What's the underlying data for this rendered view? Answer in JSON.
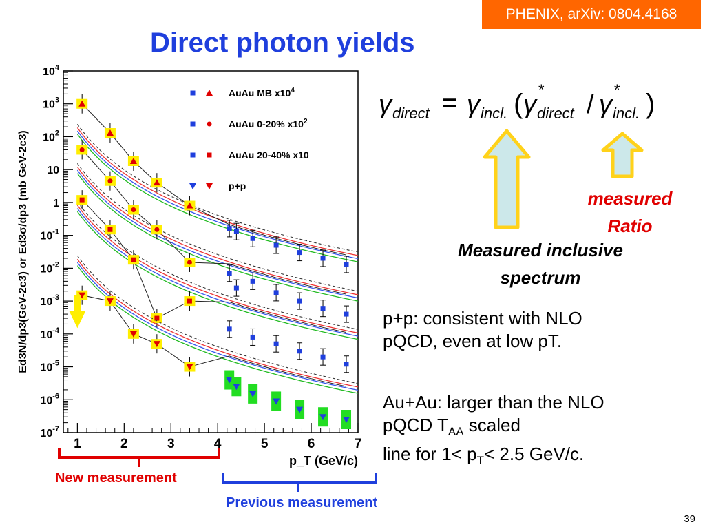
{
  "slide": {
    "reference": "PHENIX, arXiv: 0804.4168",
    "title": "Direct photon yields",
    "page_number": "39",
    "measured_ratio": [
      "measured",
      "Ratio"
    ],
    "measured_inclusive": [
      "Measured inclusive",
      "spectrum"
    ],
    "pp_text": [
      "p+p: consistent with NLO",
      "pQCD, even at low pT."
    ],
    "auau_text": {
      "line1": "Au+Au: larger than the NLO",
      "line2a": "pQCD T",
      "line2sub": "AA",
      "line2b": " scaled",
      "line3a": "line for 1< p",
      "line3sub": "T",
      "line3b": "< 2.5 GeV/c."
    },
    "new_measurement": "New measurement",
    "previous_measurement": "Previous measurement",
    "arrow_color": "#cce8ea",
    "arrow_outline": "#ffd21a"
  },
  "chart_data": {
    "type": "scatter",
    "xlabel": "p_T (GeV/c)",
    "ylabel": "Ed3N/dp3(GeV-2c3) or Ed3σ/dp3 (mb GeV-2c3)",
    "xlim": [
      0.7,
      7
    ],
    "ylim_log10": [
      -7,
      4
    ],
    "xticks": [
      "1",
      "2",
      "3",
      "4",
      "5",
      "6",
      "7"
    ],
    "yticks": [
      "10^4",
      "10^3",
      "10^2",
      "10",
      "1",
      "10^-1",
      "10^-2",
      "10^-3",
      "10^-4",
      "10^-5",
      "10^-6",
      "10^-7"
    ],
    "scale": "log-y",
    "legend_position": "top-right",
    "series": [
      {
        "name": "AuAu MB x10",
        "name_sup": "4",
        "color_blue_marker": "square",
        "color_red_marker": "triangle",
        "new_x": [
          1.1,
          1.7,
          2.2,
          2.7,
          3.4
        ],
        "new_y": [
          1000,
          130,
          18,
          4,
          0.8
        ],
        "prev_x": [
          4.25,
          4.4,
          4.75,
          5.25,
          5.75,
          6.25,
          6.75
        ],
        "prev_y": [
          0.16,
          0.13,
          0.08,
          0.05,
          0.03,
          0.02,
          0.013
        ],
        "nlo_scale": 25
      },
      {
        "name": "AuAu 0-20% x10",
        "name_sup": "2",
        "color_blue_marker": "square",
        "color_red_marker": "circle",
        "new_x": [
          1.1,
          1.7,
          2.2,
          2.7,
          3.4
        ],
        "new_y": [
          40,
          4.5,
          0.6,
          0.15,
          0.015
        ],
        "prev_x": [
          4.25,
          4.4,
          4.75,
          5.25,
          5.75,
          6.25,
          6.75
        ],
        "prev_y": [
          0.007,
          0.0025,
          0.004,
          0.0018,
          0.001,
          0.0006,
          0.0004
        ],
        "nlo_scale": 1.6
      },
      {
        "name": "AuAu 20-40% x10",
        "name_sup": "",
        "color_blue_marker": "square",
        "color_red_marker": "square",
        "new_x": [
          1.1,
          1.7,
          2.2,
          2.7,
          3.4
        ],
        "new_y": [
          1.2,
          0.15,
          0.018,
          0.0003,
          0.001
        ],
        "prev_x": [
          4.25,
          4.75,
          5.25,
          5.75,
          6.25,
          6.75
        ],
        "prev_y": [
          0.00014,
          8e-05,
          5e-05,
          3e-05,
          2e-05,
          1.2e-05
        ],
        "nlo_scale": 0.11
      },
      {
        "name": "p+p",
        "name_sup": "",
        "color_blue_marker": "triangle-down",
        "color_red_marker": "triangle-down",
        "new_x": [
          1.1,
          1.7,
          2.2,
          2.7,
          3.4
        ],
        "new_y": [
          0.0015,
          0.001,
          0.0001,
          5e-05,
          1e-05
        ],
        "prev_x": [
          4.25,
          4.4,
          4.75,
          5.25,
          5.75,
          6.25,
          6.75
        ],
        "prev_y": [
          4e-06,
          2.5e-06,
          1.5e-06,
          9e-07,
          5e-07,
          3e-07,
          2.5e-07
        ],
        "nlo_scale": 0.0025
      }
    ]
  }
}
